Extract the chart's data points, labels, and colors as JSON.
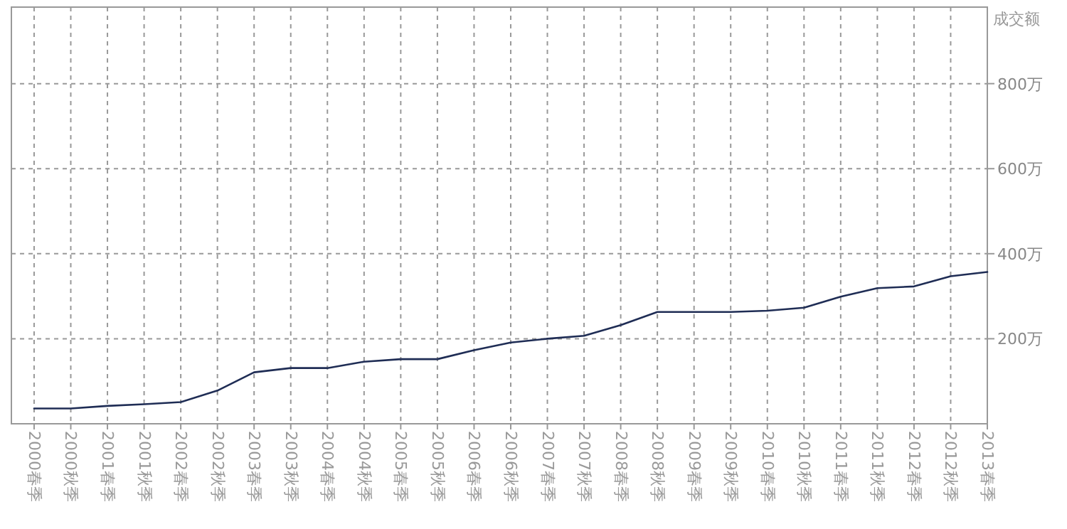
{
  "chart_data": {
    "type": "line",
    "ylabel": "成交额",
    "categories": [
      "2000春季",
      "2000秋季",
      "2001春季",
      "2001秋季",
      "2002春季",
      "2002秋季",
      "2003春季",
      "2003秋季",
      "2004春季",
      "2004秋季",
      "2005春季",
      "2005秋季",
      "2006春季",
      "2006秋季",
      "2007春季",
      "2007秋季",
      "2008春季",
      "2008秋季",
      "2009春季",
      "2009秋季",
      "2010春季",
      "2010秋季",
      "2011春季",
      "2011秋季",
      "2012春季",
      "2012秋季",
      "2013春季"
    ],
    "series": [
      {
        "color": "#1f2d55",
        "values": [
          36,
          36,
          42,
          46,
          51,
          78,
          121,
          131,
          131,
          146,
          152,
          152,
          173,
          191,
          200,
          207,
          232,
          263,
          263,
          263,
          266,
          273,
          299,
          319,
          323,
          347,
          357
        ]
      }
    ],
    "ylim": [
      0,
      980
    ],
    "yticks": [
      {
        "value": 200,
        "label": "200万"
      },
      {
        "value": 400,
        "label": "400万"
      },
      {
        "value": 600,
        "label": "600万"
      },
      {
        "value": 800,
        "label": "800万"
      }
    ],
    "grid": true
  }
}
